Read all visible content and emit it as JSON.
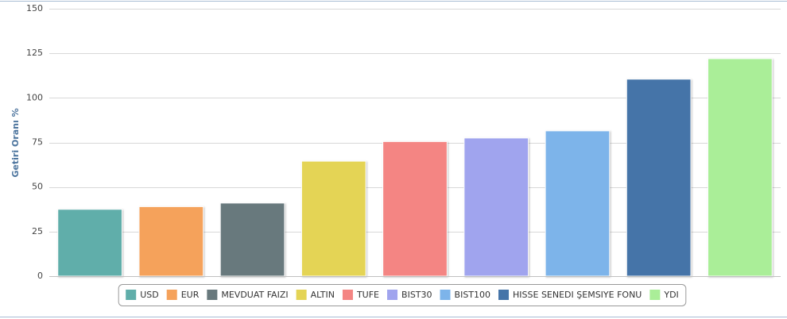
{
  "chart_data": {
    "type": "bar",
    "y_label": "Getiri Oranı %",
    "categories": [
      null
    ],
    "series": [
      {
        "name": "USD",
        "color": "#60aeaa",
        "values": [
          37.5
        ]
      },
      {
        "name": "EUR",
        "color": "#f5a25b",
        "values": [
          39
        ]
      },
      {
        "name": "MEVDUAT FAIZI",
        "color": "#68797d",
        "values": [
          41
        ]
      },
      {
        "name": "ALTIN",
        "color": "#e4d455",
        "values": [
          64.5
        ]
      },
      {
        "name": "TUFE",
        "color": "#f48583",
        "values": [
          75.5
        ]
      },
      {
        "name": "BIST30",
        "color": "#a0a4ee",
        "values": [
          77.5
        ]
      },
      {
        "name": "BIST100",
        "color": "#7db4ea",
        "values": [
          81.5
        ]
      },
      {
        "name": "HISSE SENEDI ŞEMSIYE FONU",
        "color": "#4574a8",
        "values": [
          110.5
        ]
      },
      {
        "name": "YDI",
        "color": "#aaee98",
        "values": [
          122
        ]
      }
    ],
    "ylim": [
      0,
      150
    ],
    "yticks": [
      0,
      25,
      50,
      75,
      100,
      125,
      150
    ],
    "grid": true,
    "legend": "bottom"
  }
}
